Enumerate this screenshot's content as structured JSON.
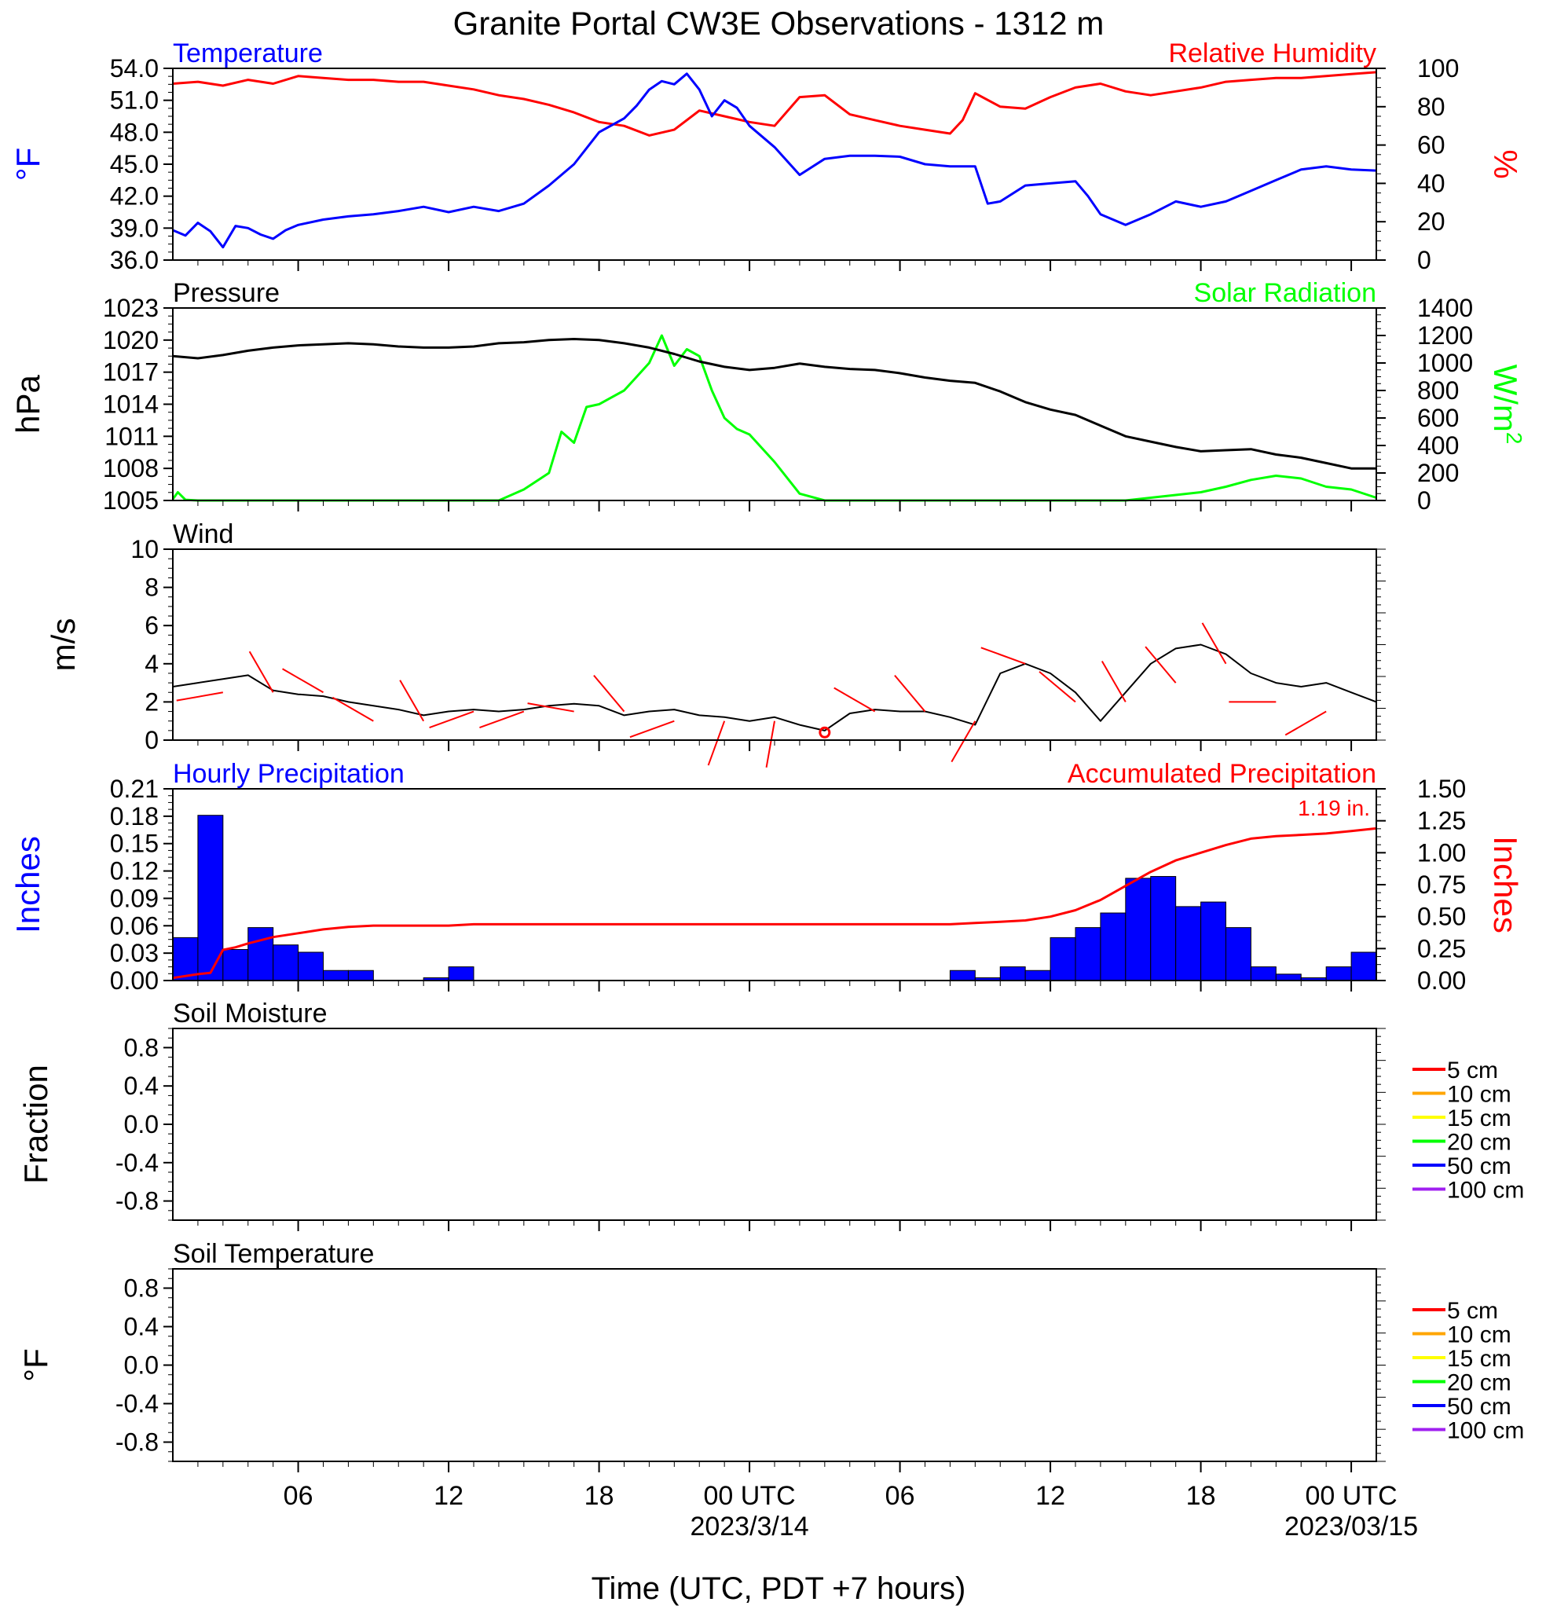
{
  "title": "Granite Portal CW3E Observations - 1312 m",
  "xlabel": "Time (UTC, PDT +7 hours)",
  "x_ticks": [
    {
      "hour": 6,
      "label": "06",
      "date": ""
    },
    {
      "hour": 12,
      "label": "12",
      "date": ""
    },
    {
      "hour": 18,
      "label": "18",
      "date": ""
    },
    {
      "hour": 24,
      "label": "00 UTC",
      "date": "2023/3/14"
    },
    {
      "hour": 30,
      "label": "06",
      "date": ""
    },
    {
      "hour": 36,
      "label": "12",
      "date": ""
    },
    {
      "hour": 42,
      "label": "18",
      "date": ""
    },
    {
      "hour": 48,
      "label": "00 UTC",
      "date": "2023/03/15"
    }
  ],
  "colors": {
    "temperature": "#0000ff",
    "humidity": "#ff0000",
    "pressure": "#000000",
    "solar": "#00ff00",
    "wind": "#000000",
    "barb": "#ff0000",
    "hourly_precip": "#0000ff",
    "accum_precip": "#ff0000"
  },
  "chart_data": [
    {
      "type": "line",
      "panel": "temperature-humidity",
      "x_unit": "hours since 2023-03-13 00 UTC",
      "xlim": [
        1,
        49
      ],
      "left": {
        "title": "Temperature",
        "ylabel": "°F",
        "ylim": [
          36,
          54
        ],
        "ticks": [
          "36.0",
          "39.0",
          "42.0",
          "45.0",
          "48.0",
          "51.0",
          "54.0"
        ]
      },
      "right": {
        "title": "Relative Humidity",
        "ylabel": "%",
        "ylim": [
          0,
          100
        ],
        "ticks": [
          "0",
          "20",
          "40",
          "60",
          "80",
          "100"
        ]
      },
      "series": [
        {
          "name": "Temperature",
          "axis": "left",
          "x": [
            1,
            1.5,
            2,
            2.5,
            3,
            3.5,
            4,
            4.5,
            5,
            5.5,
            6,
            7,
            8,
            9,
            10,
            11,
            12,
            13,
            14,
            15,
            16,
            17,
            18,
            19,
            19.5,
            20,
            20.5,
            21,
            21.5,
            22,
            22.5,
            23,
            23.5,
            24,
            25,
            26,
            27,
            28,
            29,
            30,
            31,
            32,
            33,
            33.5,
            34,
            35,
            36,
            37,
            37.5,
            38,
            39,
            40,
            41,
            42,
            43,
            44,
            45,
            46,
            47,
            48,
            49
          ],
          "y": [
            38.8,
            38.3,
            39.5,
            38.7,
            37.2,
            39.2,
            39.0,
            38.4,
            38.0,
            38.8,
            39.3,
            39.8,
            40.1,
            40.3,
            40.6,
            41.0,
            40.5,
            41.0,
            40.6,
            41.3,
            43.0,
            45.0,
            48.0,
            49.3,
            50.5,
            52.0,
            52.8,
            52.5,
            53.5,
            52.0,
            49.5,
            51.0,
            50.3,
            48.6,
            46.6,
            44.0,
            45.5,
            45.8,
            45.8,
            45.7,
            45.0,
            44.8,
            44.8,
            41.3,
            41.5,
            43.0,
            43.2,
            43.4,
            42.0,
            40.3,
            39.3,
            40.3,
            41.5,
            41.0,
            41.5,
            42.5,
            43.5,
            44.5,
            44.8,
            44.5,
            44.4
          ]
        },
        {
          "name": "Relative Humidity",
          "axis": "right",
          "x": [
            1,
            2,
            3,
            4,
            5,
            6,
            7,
            8,
            9,
            10,
            11,
            12,
            13,
            14,
            15,
            16,
            17,
            18,
            19,
            20,
            21,
            22,
            23,
            24,
            25,
            26,
            27,
            28,
            29,
            30,
            31,
            32,
            32.5,
            33,
            34,
            35,
            36,
            37,
            38,
            39,
            40,
            41,
            42,
            43,
            44,
            45,
            46,
            47,
            48,
            49
          ],
          "y": [
            92,
            93,
            91,
            94,
            92,
            96,
            95,
            94,
            94,
            93,
            93,
            91,
            89,
            86,
            84,
            81,
            77,
            72,
            70,
            65,
            68,
            78,
            75,
            72,
            70,
            85,
            86,
            76,
            73,
            70,
            68,
            66,
            73,
            87,
            80,
            79,
            85,
            90,
            92,
            88,
            86,
            88,
            90,
            93,
            94,
            95,
            95,
            96,
            97,
            98
          ]
        }
      ]
    },
    {
      "type": "line",
      "panel": "pressure-solar",
      "xlim": [
        1,
        49
      ],
      "left": {
        "title": "Pressure",
        "ylabel": "hPa",
        "ylim": [
          1005,
          1023
        ],
        "ticks": [
          "1005",
          "1008",
          "1011",
          "1014",
          "1017",
          "1020",
          "1023"
        ]
      },
      "right": {
        "title": "Solar Radiation",
        "ylabel": "W/m",
        "ylabel_sup": "2",
        "ylim": [
          0,
          1400
        ],
        "ticks": [
          "0",
          "200",
          "400",
          "600",
          "800",
          "1000",
          "1200",
          "1400"
        ]
      },
      "series": [
        {
          "name": "Pressure",
          "axis": "left",
          "x": [
            1,
            2,
            3,
            4,
            5,
            6,
            7,
            8,
            9,
            10,
            11,
            12,
            13,
            14,
            15,
            16,
            17,
            18,
            19,
            20,
            21,
            22,
            23,
            24,
            25,
            26,
            27,
            28,
            29,
            30,
            31,
            32,
            33,
            34,
            35,
            36,
            37,
            38,
            39,
            40,
            41,
            42,
            43,
            44,
            45,
            46,
            47,
            48,
            49
          ],
          "y": [
            1018.5,
            1018.3,
            1018.6,
            1019.0,
            1019.3,
            1019.5,
            1019.6,
            1019.7,
            1019.6,
            1019.4,
            1019.3,
            1019.3,
            1019.4,
            1019.7,
            1019.8,
            1020.0,
            1020.1,
            1020.0,
            1019.7,
            1019.3,
            1018.7,
            1018.0,
            1017.5,
            1017.2,
            1017.4,
            1017.8,
            1017.5,
            1017.3,
            1017.2,
            1016.9,
            1016.5,
            1016.2,
            1016.0,
            1015.2,
            1014.2,
            1013.5,
            1013.0,
            1012.0,
            1011.0,
            1010.5,
            1010.0,
            1009.6,
            1009.7,
            1009.8,
            1009.3,
            1009.0,
            1008.5,
            1008.0,
            1008.0
          ]
        },
        {
          "name": "Solar Radiation",
          "axis": "right",
          "x": [
            1,
            1.2,
            1.5,
            2,
            13,
            14,
            15,
            16,
            16.5,
            17,
            17.5,
            18,
            19,
            19.5,
            20,
            20.5,
            21,
            21.5,
            22,
            22.5,
            23,
            23.5,
            24,
            25,
            26,
            27,
            35,
            37,
            38,
            39,
            40,
            41,
            42,
            43,
            44,
            45,
            46,
            47,
            48,
            49
          ],
          "y": [
            10,
            60,
            5,
            0,
            0,
            0,
            80,
            200,
            500,
            420,
            680,
            700,
            800,
            900,
            1000,
            1200,
            980,
            1100,
            1050,
            800,
            600,
            520,
            480,
            280,
            50,
            0,
            0,
            0,
            0,
            0,
            20,
            40,
            60,
            100,
            150,
            180,
            160,
            100,
            80,
            20
          ]
        }
      ]
    },
    {
      "type": "line",
      "panel": "wind",
      "title": "Wind",
      "ylabel": "m/s",
      "xlim": [
        1,
        49
      ],
      "ylim": [
        0,
        10
      ],
      "ticks": [
        "0",
        "2",
        "4",
        "6",
        "8",
        "10"
      ],
      "series": [
        {
          "name": "Wind",
          "x": [
            1,
            2,
            3,
            4,
            5,
            6,
            7,
            8,
            9,
            10,
            11,
            12,
            13,
            14,
            15,
            16,
            17,
            18,
            19,
            20,
            21,
            22,
            23,
            24,
            25,
            26,
            27,
            28,
            29,
            30,
            31,
            32,
            33,
            34,
            35,
            36,
            37,
            38,
            39,
            40,
            41,
            42,
            43,
            44,
            45,
            46,
            47,
            48,
            49
          ],
          "y": [
            2.8,
            3.0,
            3.2,
            3.4,
            2.6,
            2.4,
            2.3,
            2.0,
            1.8,
            1.6,
            1.3,
            1.5,
            1.6,
            1.5,
            1.6,
            1.8,
            1.9,
            1.8,
            1.3,
            1.5,
            1.6,
            1.3,
            1.2,
            1.0,
            1.2,
            0.8,
            0.5,
            1.4,
            1.6,
            1.5,
            1.5,
            1.2,
            0.8,
            3.5,
            4.0,
            3.5,
            2.5,
            1.0,
            2.5,
            4.0,
            4.8,
            5.0,
            4.5,
            3.5,
            3.0,
            2.8,
            3.0,
            2.5,
            2.0
          ]
        }
      ],
      "barbs": [
        {
          "x": 3,
          "speed": 2.5,
          "dir": 260
        },
        {
          "x": 5,
          "speed": 2.5,
          "dir": 330
        },
        {
          "x": 7,
          "speed": 2.5,
          "dir": 300
        },
        {
          "x": 9,
          "speed": 1.0,
          "dir": 300
        },
        {
          "x": 11,
          "speed": 1.0,
          "dir": 330
        },
        {
          "x": 13,
          "speed": 1.5,
          "dir": 250
        },
        {
          "x": 15,
          "speed": 1.5,
          "dir": 250
        },
        {
          "x": 17,
          "speed": 1.5,
          "dir": 280
        },
        {
          "x": 19,
          "speed": 1.5,
          "dir": 320
        },
        {
          "x": 21,
          "speed": 1.0,
          "dir": 250
        },
        {
          "x": 23,
          "speed": 1.0,
          "dir": 200
        },
        {
          "x": 25,
          "speed": 1.0,
          "dir": 190
        },
        {
          "x": 27,
          "speed": 0.4,
          "dir": 0,
          "calm": true
        },
        {
          "x": 29,
          "speed": 1.5,
          "dir": 300
        },
        {
          "x": 31,
          "speed": 1.5,
          "dir": 320
        },
        {
          "x": 33,
          "speed": 1.0,
          "dir": 210
        },
        {
          "x": 35,
          "speed": 4.0,
          "dir": 290
        },
        {
          "x": 37,
          "speed": 2.0,
          "dir": 310
        },
        {
          "x": 39,
          "speed": 2.0,
          "dir": 330
        },
        {
          "x": 41,
          "speed": 3.0,
          "dir": 320
        },
        {
          "x": 43,
          "speed": 4.0,
          "dir": 330
        },
        {
          "x": 45,
          "speed": 2.0,
          "dir": 270
        },
        {
          "x": 47,
          "speed": 1.5,
          "dir": 240
        }
      ]
    },
    {
      "type": "bar",
      "panel": "precipitation",
      "xlim": [
        1,
        49
      ],
      "left": {
        "title": "Hourly Precipitation",
        "ylabel": "Inches",
        "ylim": [
          0,
          0.21
        ],
        "ticks": [
          "0.00",
          "0.03",
          "0.06",
          "0.09",
          "0.12",
          "0.15",
          "0.18",
          "0.21"
        ]
      },
      "right": {
        "title": "Accumulated Precipitation",
        "ylabel": "Inches",
        "ylim": [
          0,
          1.5
        ],
        "ticks": [
          "0.00",
          "0.25",
          "0.50",
          "0.75",
          "1.00",
          "1.25",
          "1.50"
        ]
      },
      "annotation": "1.19 in.",
      "hours": [
        1,
        2,
        3,
        4,
        5,
        6,
        7,
        8,
        9,
        10,
        11,
        12,
        13,
        14,
        15,
        16,
        17,
        18,
        19,
        20,
        21,
        22,
        23,
        24,
        25,
        26,
        27,
        28,
        29,
        30,
        31,
        32,
        33,
        34,
        35,
        36,
        37,
        38,
        39,
        40,
        41,
        42,
        43,
        44,
        45,
        46,
        47,
        48
      ],
      "hourly": [
        0.047,
        0.181,
        0.034,
        0.058,
        0.039,
        0.031,
        0.011,
        0.011,
        0,
        0,
        0.003,
        0.015,
        0,
        0,
        0,
        0,
        0,
        0,
        0,
        0,
        0,
        0,
        0,
        0,
        0,
        0,
        0,
        0,
        0,
        0,
        0,
        0.011,
        0.003,
        0.015,
        0.011,
        0.047,
        0.058,
        0.074,
        0.112,
        0.114,
        0.081,
        0.086,
        0.058,
        0.015,
        0.007,
        0.003,
        0.015,
        0.031
      ],
      "accumulated_x": [
        1,
        2,
        2.5,
        3,
        3.5,
        4,
        5,
        6,
        7,
        8,
        9,
        10,
        11,
        12,
        13,
        14,
        16,
        18,
        20,
        22,
        24,
        26,
        28,
        30,
        32,
        33,
        34,
        35,
        36,
        37,
        38,
        39,
        40,
        41,
        42,
        43,
        44,
        45,
        46,
        47,
        48,
        49
      ],
      "accumulated_y": [
        0.02,
        0.05,
        0.06,
        0.24,
        0.26,
        0.29,
        0.34,
        0.37,
        0.4,
        0.42,
        0.43,
        0.43,
        0.43,
        0.43,
        0.44,
        0.44,
        0.44,
        0.44,
        0.44,
        0.44,
        0.44,
        0.44,
        0.44,
        0.44,
        0.44,
        0.45,
        0.46,
        0.47,
        0.5,
        0.55,
        0.63,
        0.74,
        0.85,
        0.94,
        1.0,
        1.06,
        1.11,
        1.13,
        1.14,
        1.15,
        1.17,
        1.19
      ]
    },
    {
      "type": "line",
      "panel": "soil-moisture",
      "title": "Soil Moisture",
      "ylabel": "Fraction",
      "xlim": [
        1,
        49
      ],
      "ylim": [
        -1,
        1
      ],
      "ticks": [
        "-0.8",
        "-0.4",
        "0.0",
        "0.4",
        "0.8"
      ],
      "legend_position": "right",
      "series": [
        {
          "name": "5 cm",
          "color": "#ff0000",
          "values": []
        },
        {
          "name": "10 cm",
          "color": "#ffa500",
          "values": []
        },
        {
          "name": "15 cm",
          "color": "#ffff00",
          "values": []
        },
        {
          "name": "20 cm",
          "color": "#00ff00",
          "values": []
        },
        {
          "name": "50 cm",
          "color": "#0000ff",
          "values": []
        },
        {
          "name": "100 cm",
          "color": "#a020f0",
          "values": []
        }
      ]
    },
    {
      "type": "line",
      "panel": "soil-temperature",
      "title": "Soil Temperature",
      "ylabel": "°F",
      "xlim": [
        1,
        49
      ],
      "ylim": [
        -1,
        1
      ],
      "ticks": [
        "-0.8",
        "-0.4",
        "0.0",
        "0.4",
        "0.8"
      ],
      "legend_position": "right",
      "series": [
        {
          "name": "5 cm",
          "color": "#ff0000",
          "values": []
        },
        {
          "name": "10 cm",
          "color": "#ffa500",
          "values": []
        },
        {
          "name": "15 cm",
          "color": "#ffff00",
          "values": []
        },
        {
          "name": "20 cm",
          "color": "#00ff00",
          "values": []
        },
        {
          "name": "50 cm",
          "color": "#0000ff",
          "values": []
        },
        {
          "name": "100 cm",
          "color": "#a020f0",
          "values": []
        }
      ]
    }
  ]
}
